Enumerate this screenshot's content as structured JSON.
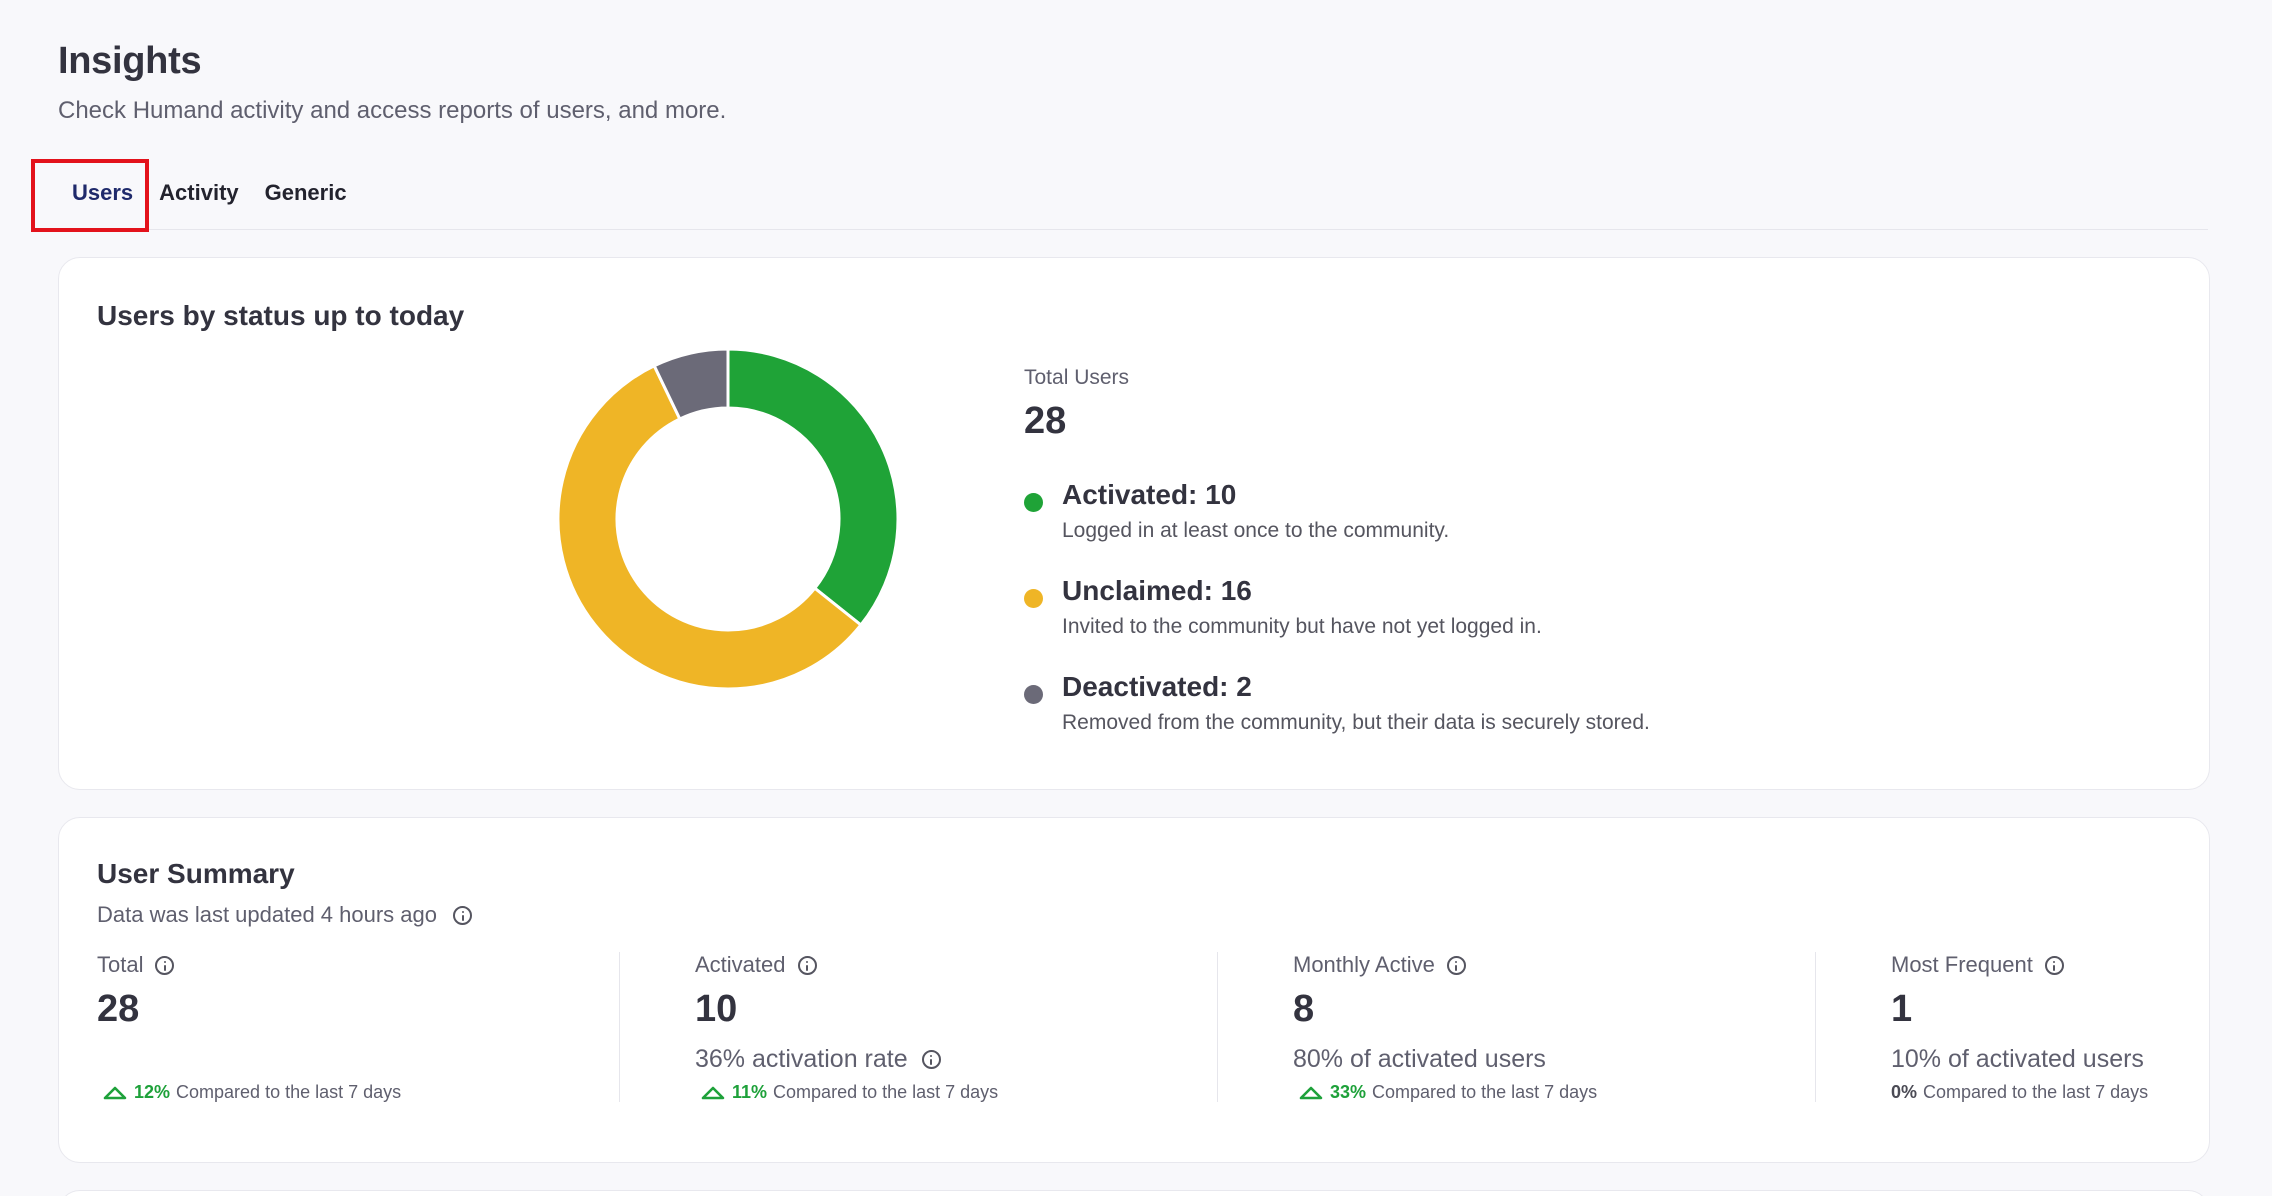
{
  "header": {
    "title": "Insights",
    "subtitle": "Check Humand activity and access reports of users, and more."
  },
  "tabs": [
    {
      "label": "Users",
      "active": true
    },
    {
      "label": "Activity",
      "active": false
    },
    {
      "label": "Generic",
      "active": false
    }
  ],
  "status_card": {
    "title": "Users by status up to today",
    "total_label": "Total Users",
    "total_value": "28",
    "items": [
      {
        "title": "Activated: 10",
        "desc": "Logged in at least once to the community.",
        "color": "#1fa337"
      },
      {
        "title": "Unclaimed: 16",
        "desc": "Invited to the community but have not yet logged in.",
        "color": "#efb526"
      },
      {
        "title": "Deactivated: 2",
        "desc": "Removed from the community, but their data is securely stored.",
        "color": "#6b6a78"
      }
    ]
  },
  "chart_data": {
    "type": "pie",
    "categories": [
      "Activated",
      "Unclaimed",
      "Deactivated"
    ],
    "values": [
      10,
      16,
      2
    ],
    "colors": [
      "#1fa337",
      "#efb526",
      "#6b6a78"
    ],
    "title": "Users by status up to today",
    "donut": true
  },
  "summary_card": {
    "title": "User Summary",
    "subtitle": "Data was last updated 4 hours ago",
    "metrics": [
      {
        "label": "Total",
        "value": "28",
        "rate": "",
        "pct": "12%",
        "compare": "Compared to the last 7 days",
        "trend": "up"
      },
      {
        "label": "Activated",
        "value": "10",
        "rate": "36% activation rate",
        "pct": "11%",
        "compare": "Compared to the last 7 days",
        "trend": "up"
      },
      {
        "label": "Monthly Active",
        "value": "8",
        "rate": "80% of activated users",
        "pct": "33%",
        "compare": "Compared to the last 7 days",
        "trend": "up"
      },
      {
        "label": "Most Frequent",
        "value": "1",
        "rate": "10% of activated users",
        "pct": "0%",
        "compare": "Compared to the last 7 days",
        "trend": "none"
      }
    ]
  },
  "colors": {
    "accent_active_tab": "#1f2a6b",
    "highlight": "#e3121b",
    "positive": "#1ea13a"
  }
}
